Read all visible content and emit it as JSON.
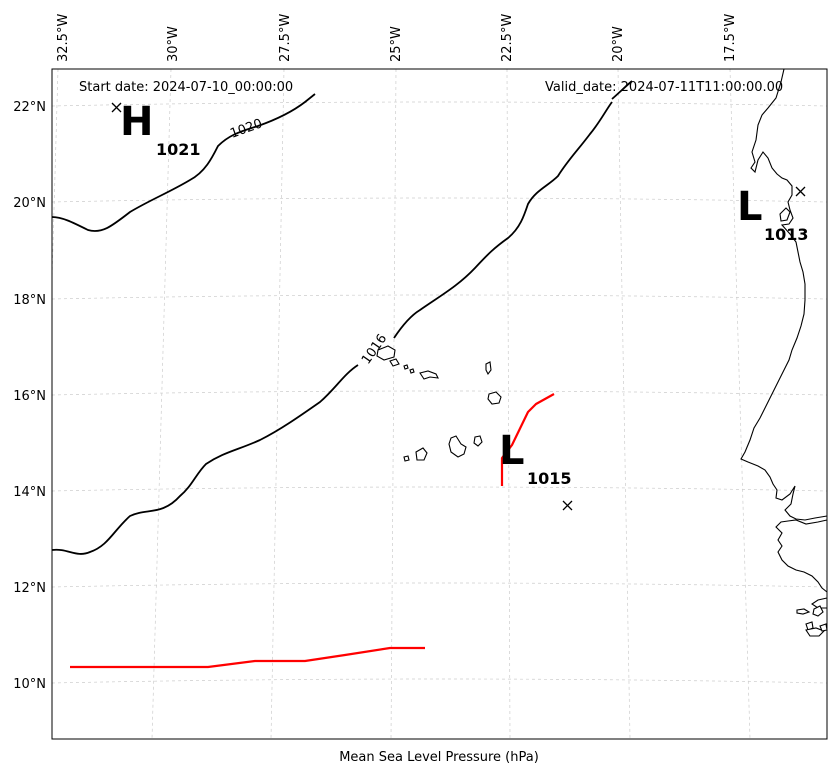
{
  "map": {
    "start_date": "Start date: 2024-07-10_00:00:00",
    "valid_date": "Valid_date: 2024-07-11T11:00:00.00",
    "caption": "Mean Sea Level Pressure (hPa)",
    "lon_ticks": [
      "32.5°W",
      "30°W",
      "27.5°W",
      "25°W",
      "22.5°W",
      "20°W",
      "17.5°W"
    ],
    "lat_ticks": [
      "22°N",
      "20°N",
      "18°N",
      "16°N",
      "14°N",
      "12°N",
      "10°N"
    ],
    "isobar_labels": [
      "1020",
      "1016"
    ],
    "pressure_centers": [
      {
        "type": "H",
        "value": "1021"
      },
      {
        "type": "L",
        "value": "1013"
      },
      {
        "type": "L",
        "value": "1015"
      }
    ],
    "colors": {
      "isobar": "#000000",
      "storm_track": "#ff0000",
      "gridline": "#cccccc",
      "coastline": "#000000"
    }
  }
}
